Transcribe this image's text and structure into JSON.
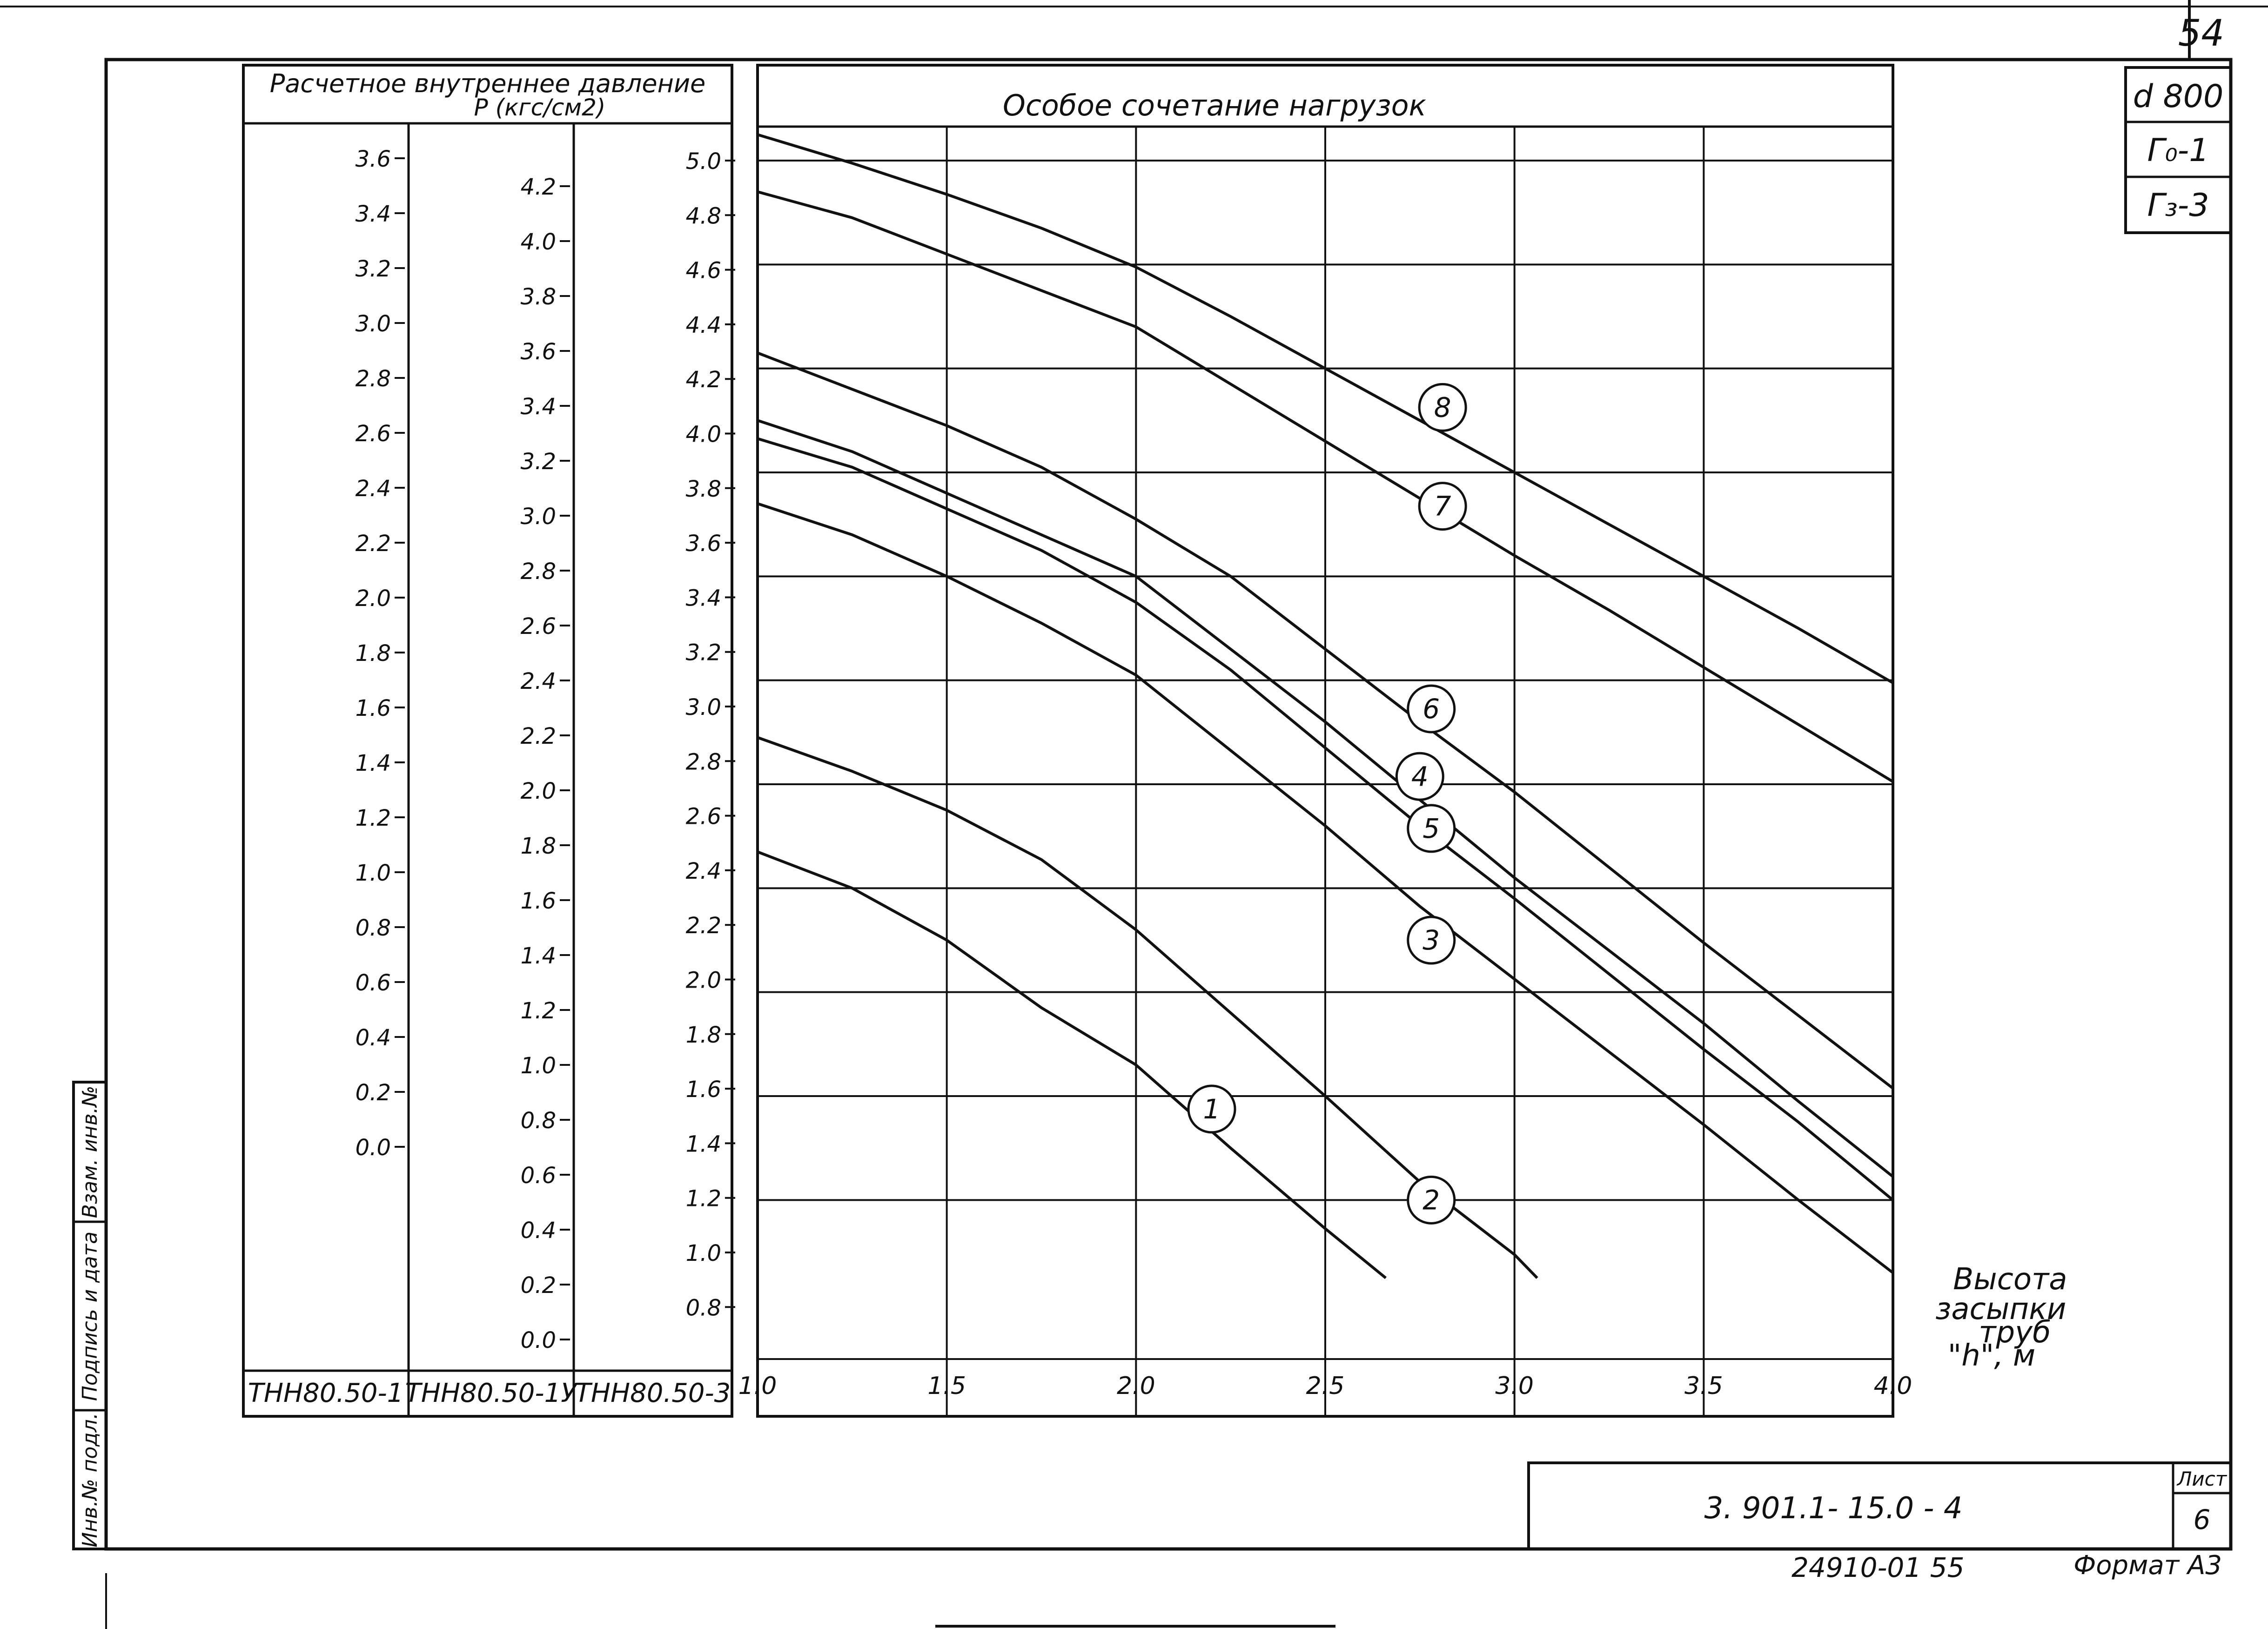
{
  "sheet": {
    "page_number": "54",
    "side_codes": [
      "d 800",
      "Г₀-1",
      "Г₃-3"
    ],
    "drawing_code": "3. 901.1- 15.0 - 4",
    "sheet_label": "Лист",
    "sheet_number": "6",
    "footer_number": "24910-01 55",
    "format_label": "Формат А3",
    "stamp_labels": [
      "Инв.№ подл.",
      "Подпись и дата",
      "Взам. инв.№"
    ]
  },
  "pressure_table": {
    "title_line1": "Расчетное внутреннее давление",
    "title_line2": "P (кгс/см2)",
    "columns": [
      {
        "name": "ТНН80.50-1",
        "ticks": [
          "3.6",
          "3.4",
          "3.2",
          "3.0",
          "2.8",
          "2.6",
          "2.4",
          "2.2",
          "2.0",
          "1.8",
          "1.6",
          "1.4",
          "1.2",
          "1.0",
          "0.8",
          "0.6",
          "0.4",
          "0.2",
          "0.0"
        ]
      },
      {
        "name": "ТНН80.50-1У",
        "ticks": [
          "4.2",
          "4.0",
          "3.8",
          "3.6",
          "3.4",
          "3.2",
          "3.0",
          "2.8",
          "2.6",
          "2.4",
          "2.2",
          "2.0",
          "1.8",
          "1.6",
          "1.4",
          "1.2",
          "1.0",
          "0.8",
          "0.6",
          "0.4",
          "0.2",
          "0.0"
        ]
      },
      {
        "name": "ТНН80.50-3",
        "ticks": [
          "5.0",
          "4.8",
          "4.6",
          "4.4",
          "4.2",
          "4.0",
          "3.8",
          "3.6",
          "3.4",
          "3.2",
          "3.0",
          "2.8",
          "2.6",
          "2.4",
          "2.2",
          "2.0",
          "1.8",
          "1.6",
          "1.4",
          "1.2",
          "1.0",
          "0.8"
        ]
      }
    ]
  },
  "chart_data": {
    "type": "line",
    "title": "Особое сочетание нагрузок",
    "xlabel": "Высота засыпки труб \"h\", м",
    "xlim": [
      1.0,
      4.0
    ],
    "ylim": [
      0.7,
      5.15
    ],
    "x_ticks": [
      "1.0",
      "1.5",
      "2.0",
      "2.5",
      "3.0",
      "3.5",
      "4.0"
    ],
    "grid": true,
    "series": [
      {
        "name": "1",
        "label_at": [
          2.2,
          1.35
        ],
        "points": [
          [
            1.0,
            2.34
          ],
          [
            1.25,
            2.2
          ],
          [
            1.5,
            2.0
          ],
          [
            1.75,
            1.74
          ],
          [
            2.0,
            1.52
          ],
          [
            2.25,
            1.2
          ],
          [
            2.5,
            0.89
          ],
          [
            2.66,
            0.7
          ]
        ]
      },
      {
        "name": "2",
        "label_at": [
          2.78,
          1.0
        ],
        "points": [
          [
            1.0,
            2.78
          ],
          [
            1.25,
            2.65
          ],
          [
            1.5,
            2.5
          ],
          [
            1.75,
            2.31
          ],
          [
            2.0,
            2.04
          ],
          [
            2.25,
            1.72
          ],
          [
            2.5,
            1.4
          ],
          [
            2.75,
            1.07
          ],
          [
            3.0,
            0.79
          ],
          [
            3.06,
            0.7
          ]
        ]
      },
      {
        "name": "3",
        "label_at": [
          2.78,
          2.0
        ],
        "points": [
          [
            1.0,
            3.68
          ],
          [
            1.25,
            3.56
          ],
          [
            1.5,
            3.4
          ],
          [
            1.75,
            3.22
          ],
          [
            2.0,
            3.02
          ],
          [
            2.25,
            2.73
          ],
          [
            2.5,
            2.44
          ],
          [
            2.75,
            2.13
          ],
          [
            3.0,
            1.85
          ],
          [
            3.25,
            1.57
          ],
          [
            3.5,
            1.29
          ],
          [
            3.75,
            1.0
          ],
          [
            4.0,
            0.72
          ]
        ]
      },
      {
        "name": "4",
        "label_at": [
          2.75,
          2.63
        ],
        "points": [
          [
            1.0,
            4.0
          ],
          [
            1.25,
            3.88
          ],
          [
            1.5,
            3.72
          ],
          [
            1.75,
            3.56
          ],
          [
            2.0,
            3.4
          ],
          [
            2.25,
            3.12
          ],
          [
            2.5,
            2.84
          ],
          [
            2.75,
            2.54
          ],
          [
            3.0,
            2.24
          ],
          [
            3.25,
            1.96
          ],
          [
            3.5,
            1.68
          ],
          [
            3.75,
            1.38
          ],
          [
            4.0,
            1.09
          ]
        ]
      },
      {
        "name": "5",
        "label_at": [
          2.78,
          2.43
        ],
        "points": [
          [
            1.0,
            3.93
          ],
          [
            1.25,
            3.82
          ],
          [
            1.5,
            3.66
          ],
          [
            1.75,
            3.5
          ],
          [
            2.0,
            3.3
          ],
          [
            2.25,
            3.04
          ],
          [
            2.5,
            2.74
          ],
          [
            2.75,
            2.44
          ],
          [
            3.0,
            2.16
          ],
          [
            3.25,
            1.87
          ],
          [
            3.5,
            1.58
          ],
          [
            3.75,
            1.3
          ],
          [
            4.0,
            1.0
          ]
        ]
      },
      {
        "name": "6",
        "label_at": [
          2.78,
          2.89
        ],
        "points": [
          [
            1.0,
            4.26
          ],
          [
            1.25,
            4.12
          ],
          [
            1.5,
            3.98
          ],
          [
            1.75,
            3.82
          ],
          [
            2.0,
            3.62
          ],
          [
            2.25,
            3.4
          ],
          [
            2.5,
            3.12
          ],
          [
            2.75,
            2.84
          ],
          [
            3.0,
            2.57
          ],
          [
            3.25,
            2.28
          ],
          [
            3.5,
            1.99
          ],
          [
            3.75,
            1.71
          ],
          [
            4.0,
            1.43
          ]
        ]
      },
      {
        "name": "7",
        "label_at": [
          2.81,
          3.67
        ],
        "points": [
          [
            1.0,
            4.88
          ],
          [
            1.25,
            4.78
          ],
          [
            1.5,
            4.64
          ],
          [
            1.75,
            4.5
          ],
          [
            2.0,
            4.36
          ],
          [
            2.25,
            4.14
          ],
          [
            2.5,
            3.92
          ],
          [
            2.75,
            3.7
          ],
          [
            3.0,
            3.48
          ],
          [
            3.25,
            3.27
          ],
          [
            3.5,
            3.05
          ],
          [
            3.75,
            2.83
          ],
          [
            4.0,
            2.61
          ]
        ]
      },
      {
        "name": "8",
        "label_at": [
          2.81,
          4.05
        ],
        "points": [
          [
            1.0,
            5.1
          ],
          [
            1.25,
            4.99
          ],
          [
            1.5,
            4.87
          ],
          [
            1.75,
            4.74
          ],
          [
            2.0,
            4.59
          ],
          [
            2.25,
            4.4
          ],
          [
            2.5,
            4.2
          ],
          [
            2.75,
            4.0
          ],
          [
            3.0,
            3.8
          ],
          [
            3.25,
            3.6
          ],
          [
            3.5,
            3.4
          ],
          [
            3.75,
            3.2
          ],
          [
            4.0,
            2.99
          ]
        ]
      }
    ]
  }
}
